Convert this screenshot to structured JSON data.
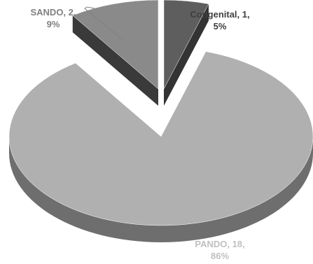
{
  "chart_data": {
    "type": "pie",
    "style": "3d-exploded",
    "slices": [
      {
        "name": "Congenital",
        "value": 1,
        "percent": "5%",
        "color": "#5e5e5e"
      },
      {
        "name": "PANDO",
        "value": 18,
        "percent": "86%",
        "color": "#b0b0b0"
      },
      {
        "name": "SANDO",
        "value": 2,
        "percent": "9%",
        "color": "#8a8a8a"
      }
    ],
    "labels": {
      "congenital": {
        "line1": "Congenital, 1,",
        "line2": "5%"
      },
      "sando": {
        "line1": "SANDO, 2,",
        "line2": "9%"
      },
      "pando": {
        "line1": "PANDO, 18,",
        "line2": "86%"
      }
    }
  }
}
